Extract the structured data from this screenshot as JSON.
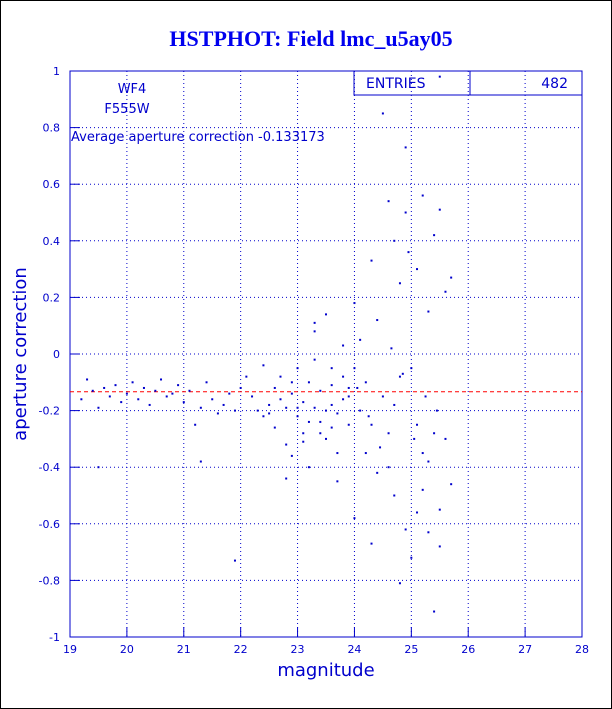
{
  "chart_data": {
    "type": "scatter",
    "title": "HSTPHOT: Field lmc_u5ay05",
    "xlabel": "magnitude",
    "ylabel": "aperture correction",
    "notes": [
      "WF4",
      "F555W"
    ],
    "average_label": "Average aperture correction -0.133173",
    "average": -0.133173,
    "average_color": "#ff0000",
    "stats": {
      "label": "ENTRIES",
      "value": 482
    },
    "color": "#0000cc",
    "grid": true,
    "xlim": [
      19,
      28
    ],
    "xticks": [
      19,
      20,
      21,
      22,
      23,
      24,
      25,
      26,
      27,
      28
    ],
    "ylim": [
      -1,
      1
    ],
    "yticks": [
      -1,
      -0.8,
      -0.6,
      -0.4,
      -0.2,
      0,
      0.2,
      0.4,
      0.6,
      0.8,
      1
    ],
    "x": [
      19.2,
      19.3,
      19.4,
      19.5,
      19.6,
      19.7,
      19.8,
      19.9,
      20.0,
      20.1,
      20.2,
      20.3,
      20.4,
      20.5,
      20.6,
      20.7,
      20.8,
      20.9,
      21.0,
      21.1,
      21.2,
      21.3,
      21.4,
      21.5,
      21.6,
      21.7,
      21.8,
      21.9,
      22.0,
      22.1,
      19.5,
      21.3,
      21.9,
      22.2,
      22.3,
      22.4,
      22.4,
      22.5,
      22.6,
      22.6,
      22.7,
      22.8,
      22.8,
      22.9,
      22.9,
      23.0,
      23.0,
      23.1,
      23.1,
      23.2,
      23.2,
      23.3,
      23.3,
      23.4,
      23.4,
      23.5,
      23.5,
      23.6,
      23.6,
      23.7,
      23.7,
      23.8,
      23.8,
      23.9,
      23.9,
      23.0,
      23.2,
      23.4,
      23.6,
      23.8,
      22.5,
      22.7,
      22.9,
      23.1,
      23.3,
      23.5,
      23.7,
      23.9,
      22.8,
      23.3,
      23.6,
      24.0,
      24.0,
      24.1,
      24.1,
      24.2,
      24.2,
      24.3,
      24.3,
      24.4,
      24.4,
      24.5,
      24.5,
      24.6,
      24.6,
      24.7,
      24.7,
      24.8,
      24.8,
      24.9,
      24.9,
      25.0,
      25.0,
      25.1,
      25.1,
      25.2,
      25.2,
      25.3,
      25.3,
      25.4,
      25.4,
      25.5,
      25.5,
      25.6,
      25.6,
      25.7,
      25.7,
      24.05,
      24.25,
      24.45,
      24.65,
      24.85,
      25.05,
      25.25,
      25.45,
      24.6,
      24.9,
      25.3,
      25.4,
      24.8,
      25.1,
      24.0,
      24.3,
      24.7,
      25.2,
      25.5,
      24.95,
      25.5
    ],
    "values": [
      -0.16,
      -0.09,
      -0.13,
      -0.19,
      -0.12,
      -0.15,
      -0.11,
      -0.17,
      -0.14,
      -0.1,
      -0.16,
      -0.12,
      -0.18,
      -0.13,
      -0.09,
      -0.15,
      -0.14,
      -0.11,
      -0.17,
      -0.13,
      -0.25,
      -0.19,
      -0.1,
      -0.16,
      -0.21,
      -0.18,
      -0.14,
      -0.2,
      -0.12,
      -0.08,
      -0.4,
      -0.38,
      -0.73,
      -0.15,
      -0.2,
      -0.04,
      -0.22,
      -0.18,
      -0.12,
      -0.26,
      -0.08,
      -0.19,
      -0.32,
      -0.14,
      -0.36,
      -0.22,
      -0.05,
      -0.28,
      -0.17,
      -0.1,
      -0.4,
      -0.19,
      0.08,
      -0.24,
      -0.13,
      0.14,
      -0.3,
      -0.18,
      -0.05,
      -0.21,
      -0.35,
      -0.16,
      0.03,
      -0.25,
      -0.12,
      -0.19,
      -0.24,
      -0.28,
      -0.11,
      -0.08,
      -0.21,
      -0.16,
      -0.1,
      -0.31,
      -0.02,
      -0.2,
      -0.45,
      -0.15,
      -0.44,
      0.11,
      -0.26,
      0.18,
      -0.58,
      -0.2,
      0.05,
      -0.35,
      -0.1,
      -0.67,
      0.33,
      -0.42,
      0.12,
      -0.15,
      0.85,
      -0.28,
      0.54,
      -0.5,
      0.4,
      -0.81,
      0.25,
      -0.62,
      0.5,
      -0.05,
      -0.72,
      0.3,
      -0.25,
      -0.48,
      0.56,
      -0.38,
      0.15,
      -0.91,
      0.42,
      -0.55,
      0.51,
      -0.3,
      0.22,
      -0.46,
      0.27,
      -0.12,
      -0.22,
      -0.33,
      0.02,
      -0.07,
      -0.3,
      -0.15,
      -0.2,
      -0.4,
      0.73,
      -0.63,
      -0.28,
      -0.08,
      -0.56,
      -0.05,
      -0.25,
      -0.18,
      -0.35,
      -0.68,
      0.36,
      0.98
    ]
  }
}
